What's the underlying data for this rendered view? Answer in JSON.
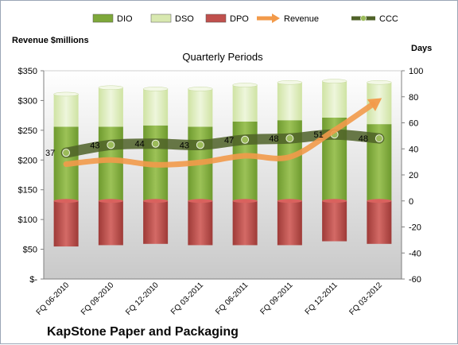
{
  "chart_data": {
    "type": "bar",
    "title": "KapStone Paper and Packaging",
    "subtitle": "Quarterly Periods",
    "ylabel_left": "Revenue $millions",
    "ylabel_right": "Days",
    "left_axis": {
      "min": 0,
      "max": 350,
      "step": 50,
      "tick_labels": [
        "$-",
        "$50",
        "$100",
        "$150",
        "$200",
        "$250",
        "$300",
        "$350"
      ]
    },
    "right_axis": {
      "min": -60,
      "max": 100,
      "step": 20,
      "tick_labels": [
        "-60",
        "-40",
        "-20",
        "0",
        "20",
        "40",
        "60",
        "80",
        "100"
      ]
    },
    "categories": [
      "FQ 06-2010",
      "FQ 09-2010",
      "FQ 12-2010",
      "FQ 03-2011",
      "FQ 06-2011",
      "FQ 09-2011",
      "FQ 12-2011",
      "FQ 03-2012"
    ],
    "legend": [
      "DIO",
      "DSO",
      "DPO",
      "Revenue",
      "CCC"
    ],
    "legend_position": "top",
    "gridlines": false,
    "series": [
      {
        "name": "DIO",
        "axis": "right",
        "color": "#7ea83a",
        "values": [
          57,
          57,
          58,
          57,
          61,
          62,
          64,
          59
        ]
      },
      {
        "name": "DSO",
        "axis": "right",
        "color": "#d8e8b0",
        "values": [
          25,
          30,
          28,
          29,
          28,
          29,
          28,
          32
        ]
      },
      {
        "name": "DPO",
        "axis": "right",
        "color": "#c0504d",
        "values": [
          -35,
          -34,
          -33,
          -34,
          -34,
          -34,
          -31,
          -33
        ]
      },
      {
        "name": "Revenue",
        "axis": "left",
        "color": "#f29a4a",
        "values": [
          193,
          200,
          192,
          196,
          207,
          205,
          250,
          301
        ]
      },
      {
        "name": "CCC",
        "axis": "right",
        "color": "#4f6228",
        "values": [
          37,
          43,
          44,
          43,
          47,
          48,
          51,
          48
        ],
        "labels": [
          "37",
          "43",
          "44",
          "43",
          "47",
          "48",
          "51",
          "48"
        ]
      }
    ]
  }
}
